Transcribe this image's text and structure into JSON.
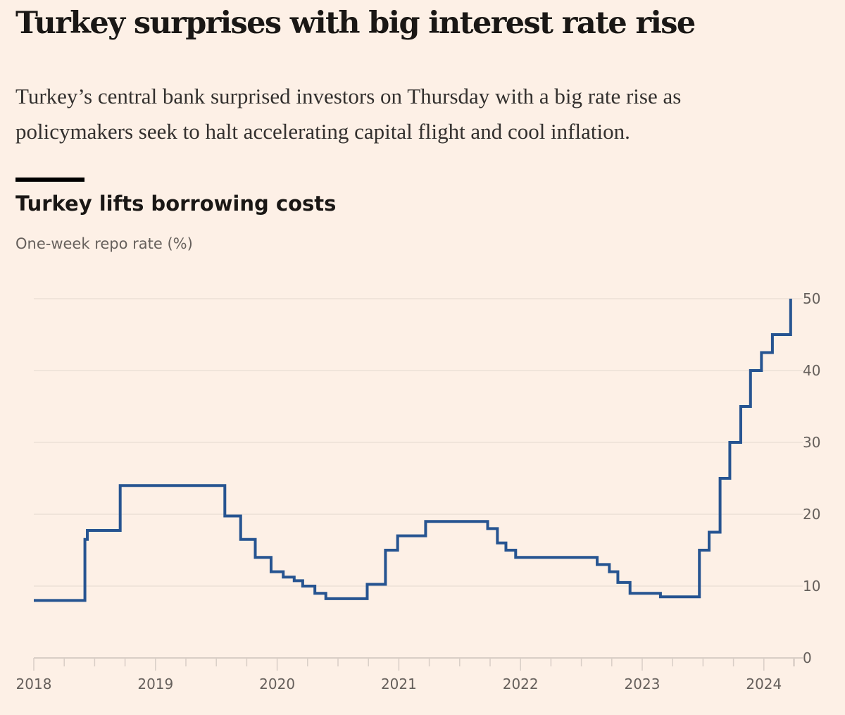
{
  "article": {
    "headline": "Turkey surprises with big interest rate rise",
    "standfirst": "Turkey’s central bank surprised investors on Thursday with a big rate rise as policymakers seek to halt accelerating capital flight and cool inflation."
  },
  "colors": {
    "background": "#fdf0e6",
    "line": "#265491",
    "grid": "#ece0d6",
    "axis": "#d9cec6",
    "text_muted": "#66605c"
  },
  "chart_data": {
    "type": "line",
    "step": true,
    "title": "Turkey lifts borrowing costs",
    "subtitle": "One-week repo rate (%)",
    "xlabel": "",
    "ylabel": "One-week repo rate (%)",
    "xlim": [
      2018.0,
      2024.28
    ],
    "ylim": [
      0,
      50
    ],
    "y_ticks": [
      0,
      10,
      20,
      30,
      40,
      50
    ],
    "y_tick_labels": [
      "0",
      "10",
      "20",
      "30",
      "40",
      "50"
    ],
    "x_ticks": [
      2018,
      2019,
      2020,
      2021,
      2022,
      2023,
      2024
    ],
    "x_tick_labels": [
      "2018",
      "2019",
      "2020",
      "2021",
      "2022",
      "2023",
      "2024"
    ],
    "minor_x_ticks_per_year": 4,
    "y_axis_position": "right",
    "grid": true,
    "legend": "none",
    "series": [
      {
        "name": "One-week repo rate",
        "points": [
          [
            2018.0,
            8.0
          ],
          [
            2018.42,
            16.5
          ],
          [
            2018.44,
            17.75
          ],
          [
            2018.71,
            24.0
          ],
          [
            2019.57,
            19.75
          ],
          [
            2019.7,
            16.5
          ],
          [
            2019.82,
            14.0
          ],
          [
            2019.95,
            12.0
          ],
          [
            2020.05,
            11.25
          ],
          [
            2020.14,
            10.75
          ],
          [
            2020.21,
            10.0
          ],
          [
            2020.31,
            9.0
          ],
          [
            2020.4,
            8.25
          ],
          [
            2020.74,
            10.25
          ],
          [
            2020.89,
            15.0
          ],
          [
            2020.99,
            17.0
          ],
          [
            2021.22,
            19.0
          ],
          [
            2021.73,
            18.0
          ],
          [
            2021.81,
            16.0
          ],
          [
            2021.88,
            15.0
          ],
          [
            2021.96,
            14.0
          ],
          [
            2022.63,
            13.0
          ],
          [
            2022.73,
            12.0
          ],
          [
            2022.8,
            10.5
          ],
          [
            2022.9,
            9.0
          ],
          [
            2023.15,
            8.5
          ],
          [
            2023.47,
            15.0
          ],
          [
            2023.55,
            17.5
          ],
          [
            2023.64,
            25.0
          ],
          [
            2023.72,
            30.0
          ],
          [
            2023.81,
            35.0
          ],
          [
            2023.89,
            40.0
          ],
          [
            2023.98,
            42.5
          ],
          [
            2024.07,
            45.0
          ],
          [
            2024.22,
            50.0
          ]
        ]
      }
    ]
  }
}
